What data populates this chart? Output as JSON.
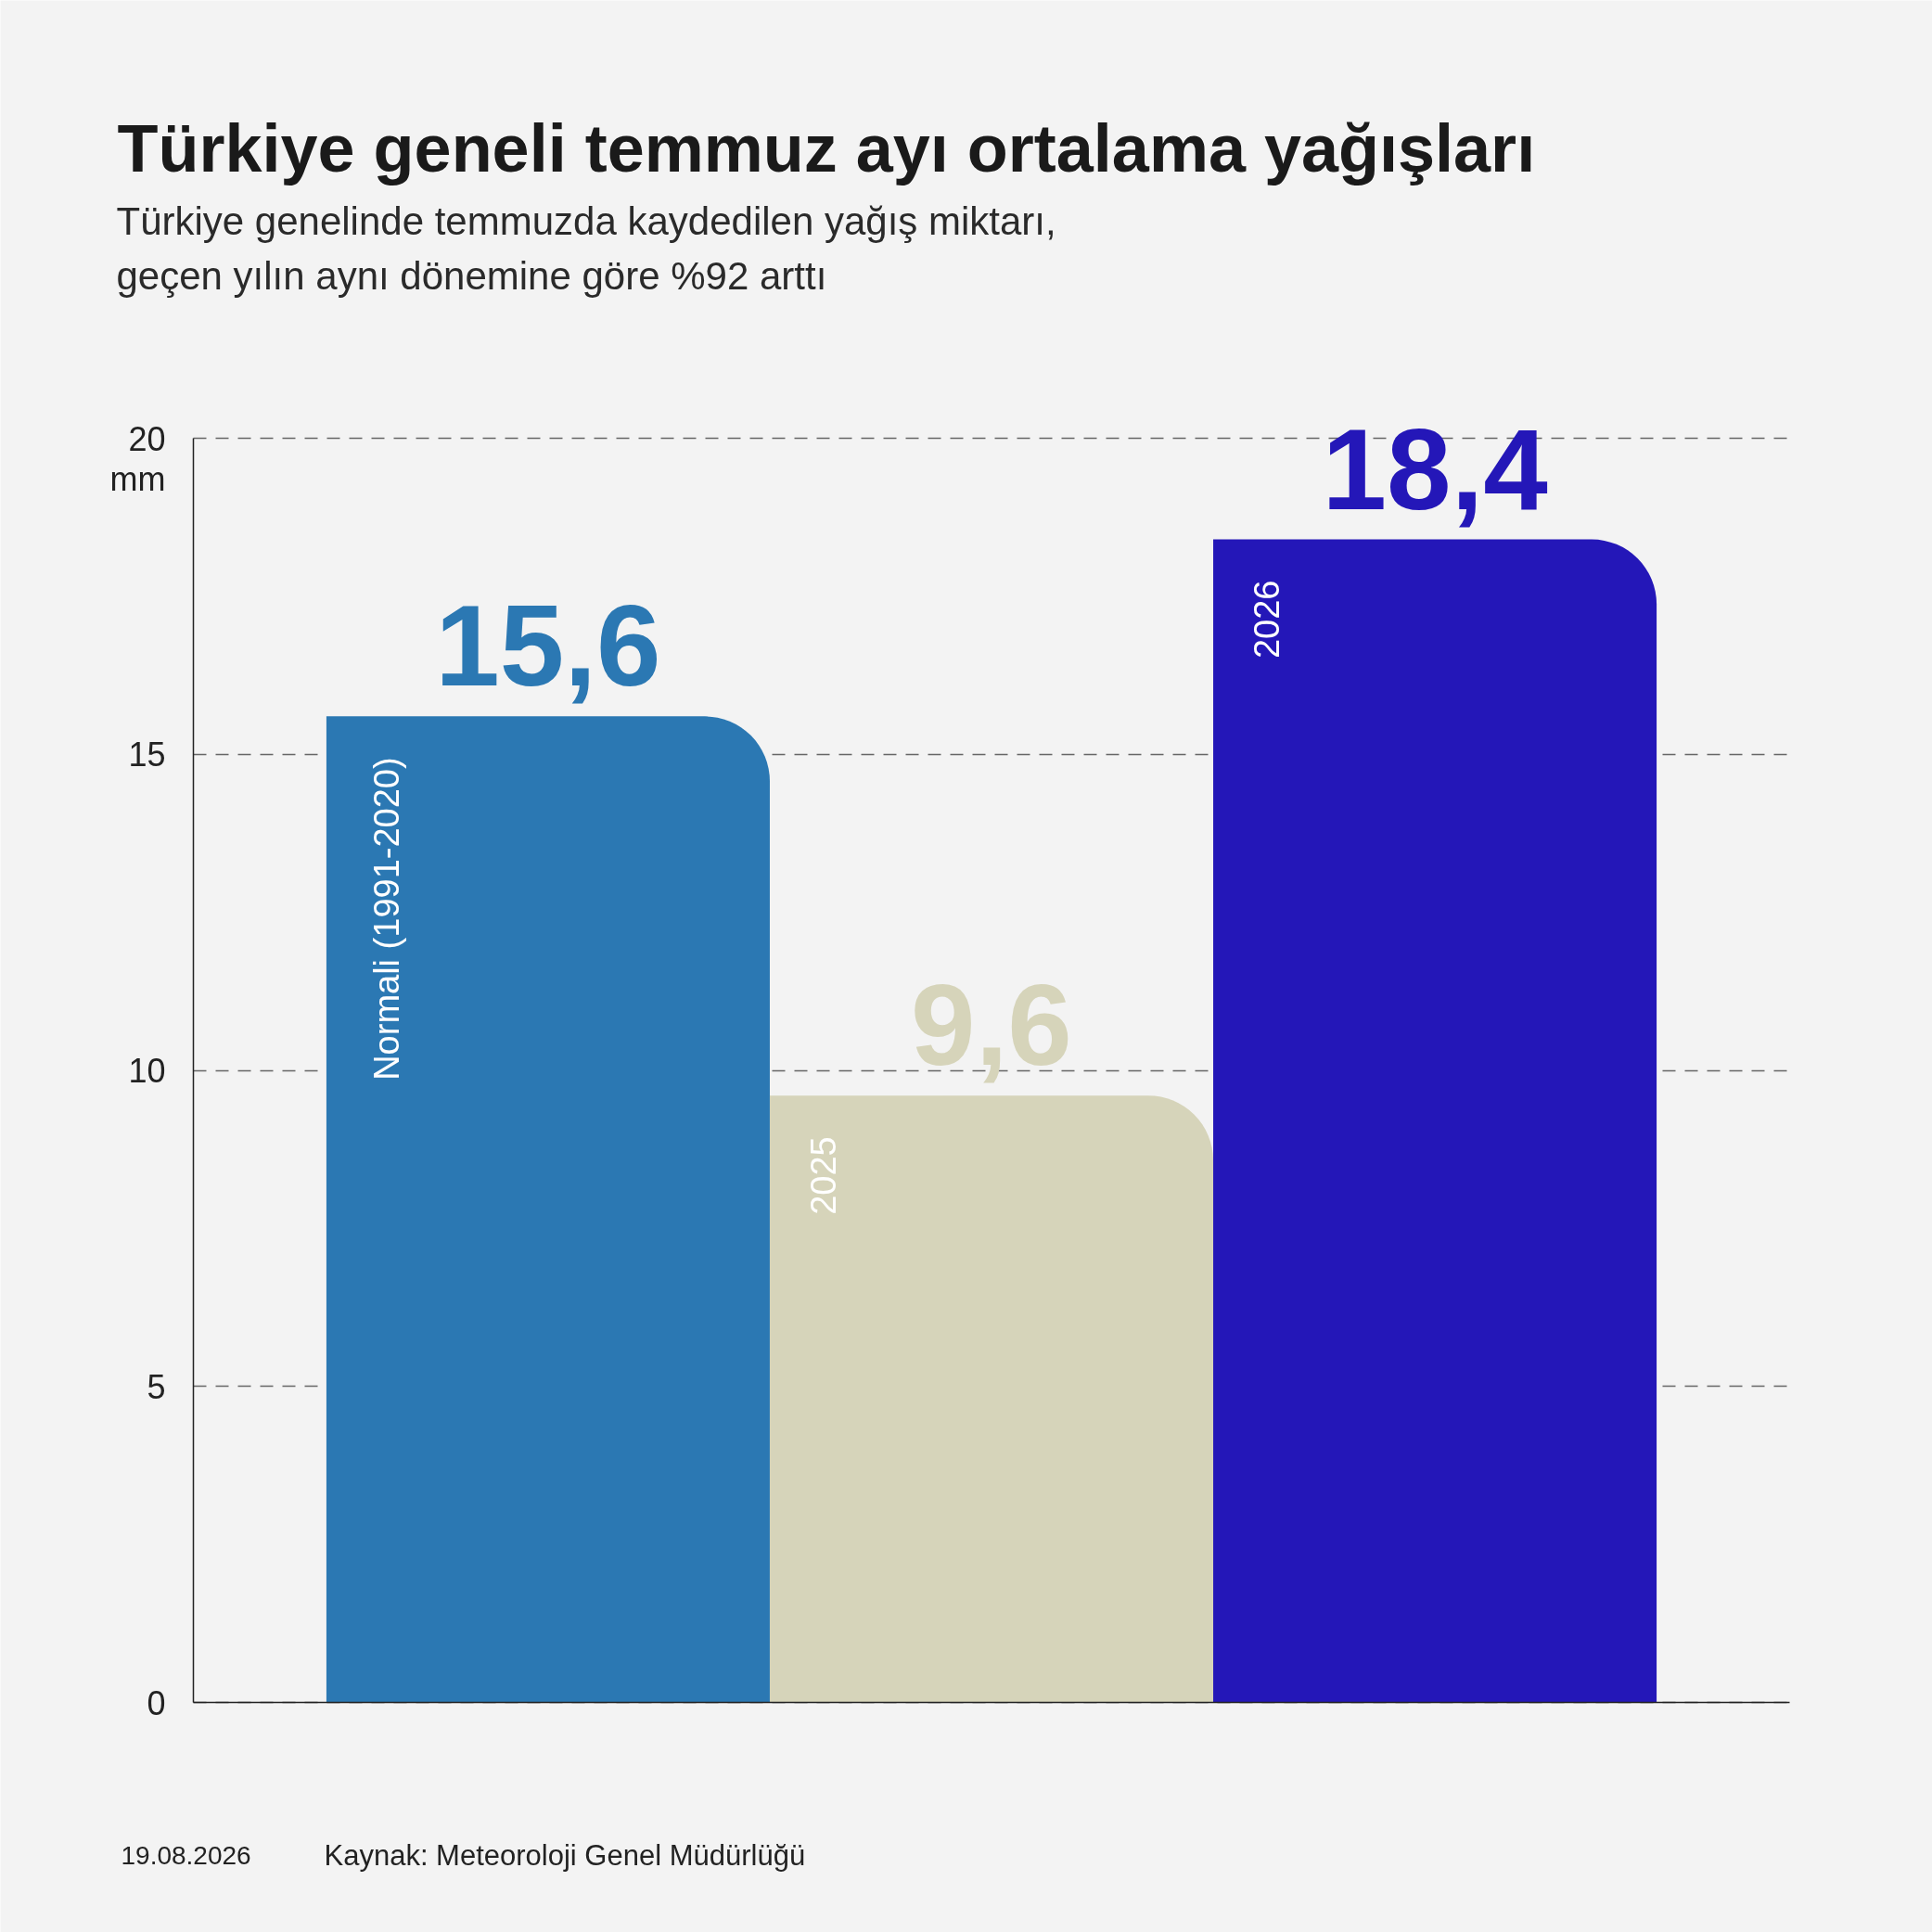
{
  "chart_data": {
    "type": "bar",
    "title": "Türkiye geneli temmuz ayı ortalama yağışları",
    "subtitle": "Türkiye genelinde temmuzda kaydedilen yağış miktarı,\ngeçen yılın aynı dönemine göre %92 arttı",
    "ylabel": "mm",
    "categories": [
      "Normali (1991-2020)",
      "2025",
      "2026"
    ],
    "values": [
      15.6,
      9.6,
      18.4
    ],
    "colors": [
      "#2b78b3",
      "#d6d4ba",
      "#2417b8"
    ],
    "value_labels": [
      "15,6",
      "9,6",
      "18,4"
    ],
    "ylim": [
      0,
      20
    ],
    "yticks": [
      0,
      5,
      10,
      15,
      20
    ],
    "grid": "y",
    "tick_labels": "y",
    "annotations": [
      "19.08.2026",
      "Kaynak: Meteoroloji Genel Müdürlüğü"
    ]
  }
}
